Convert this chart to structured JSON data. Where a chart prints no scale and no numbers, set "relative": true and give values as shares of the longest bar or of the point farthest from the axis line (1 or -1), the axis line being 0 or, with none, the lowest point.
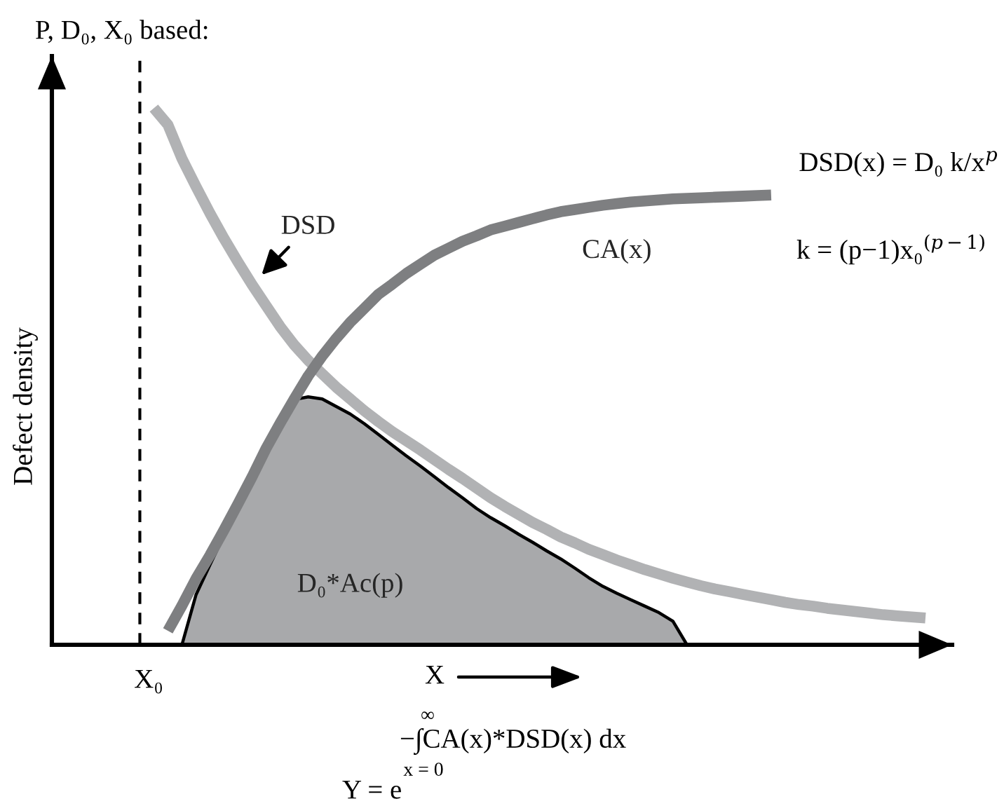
{
  "chart_data": {
    "type": "line",
    "title": "P, D₀, X₀ based:",
    "xlabel": "X",
    "ylabel": "Defect density",
    "relative": true,
    "categories": [
      null,
      null,
      null,
      null,
      null,
      null,
      null,
      null,
      null,
      null,
      null,
      null,
      null,
      null,
      null,
      null,
      null,
      null,
      null,
      null,
      null,
      null,
      null,
      null,
      null,
      null,
      null,
      null,
      null,
      null,
      null,
      null,
      null,
      null,
      null,
      null,
      null,
      null,
      null,
      null,
      null,
      null,
      null,
      null,
      null,
      null,
      null,
      null,
      null,
      null,
      null,
      null,
      null,
      null,
      null,
      null,
      null
    ],
    "series": [
      {
        "name": "DSD",
        "color": "#b1b2b4",
        "values": [
          null,
          1.0,
          0.969,
          0.906,
          0.854,
          0.804,
          0.757,
          0.713,
          0.671,
          0.632,
          0.593,
          0.559,
          0.53,
          0.505,
          0.48,
          0.458,
          0.436,
          0.416,
          0.397,
          0.38,
          0.363,
          0.345,
          0.327,
          0.31,
          0.292,
          0.274,
          0.258,
          0.243,
          0.228,
          0.215,
          0.201,
          0.19,
          0.178,
          0.168,
          0.158,
          0.149,
          0.14,
          0.132,
          0.124,
          0.117,
          0.11,
          0.104,
          0.099,
          0.094,
          0.089,
          0.084,
          0.079,
          0.075,
          0.072,
          0.068,
          0.065,
          0.062,
          0.059,
          0.056,
          0.054,
          0.052,
          0.05
        ]
      },
      {
        "name": "CA(x)",
        "color": "#7e7f81",
        "values": [
          null,
          null,
          0.026,
          0.073,
          0.123,
          0.167,
          0.214,
          0.263,
          0.313,
          0.366,
          0.413,
          0.458,
          0.501,
          0.538,
          0.571,
          0.601,
          0.627,
          0.653,
          0.672,
          0.692,
          0.709,
          0.726,
          0.739,
          0.752,
          0.762,
          0.773,
          0.78,
          0.787,
          0.794,
          0.801,
          0.807,
          0.811,
          0.815,
          0.819,
          0.822,
          0.825,
          0.827,
          0.829,
          0.831,
          0.832,
          0.833,
          0.834,
          0.835,
          0.836,
          0.837,
          0.838,
          null,
          null,
          null,
          null,
          null,
          null,
          null,
          null,
          null,
          null,
          null
        ]
      },
      {
        "name": "D₀*Ac(p)",
        "type": "area",
        "color": "#a8a9ab",
        "values": [
          null,
          null,
          null,
          0,
          0.093,
          0.149,
          0.204,
          0.26,
          0.316,
          0.371,
          0.423,
          0.457,
          0.462,
          0.458,
          0.444,
          0.43,
          0.412,
          0.392,
          0.372,
          0.352,
          0.333,
          0.313,
          0.293,
          0.274,
          0.254,
          0.237,
          0.222,
          0.206,
          0.191,
          0.175,
          0.16,
          0.143,
          0.125,
          0.109,
          0.096,
          0.084,
          0.072,
          0.06,
          0.044,
          0,
          null,
          null,
          null,
          null,
          null,
          null,
          null,
          null,
          null,
          null,
          null,
          null,
          null,
          null,
          null,
          null,
          null
        ]
      }
    ],
    "annotations": [
      "X₀",
      "DSD(x) = D₀ k/x$^{p}$",
      "k = (p−1)x₀$^{(p−1)}$",
      "∞",
      "−∫CA(x)*DSD(x) dx",
      "x = 0",
      "Y = e"
    ]
  }
}
